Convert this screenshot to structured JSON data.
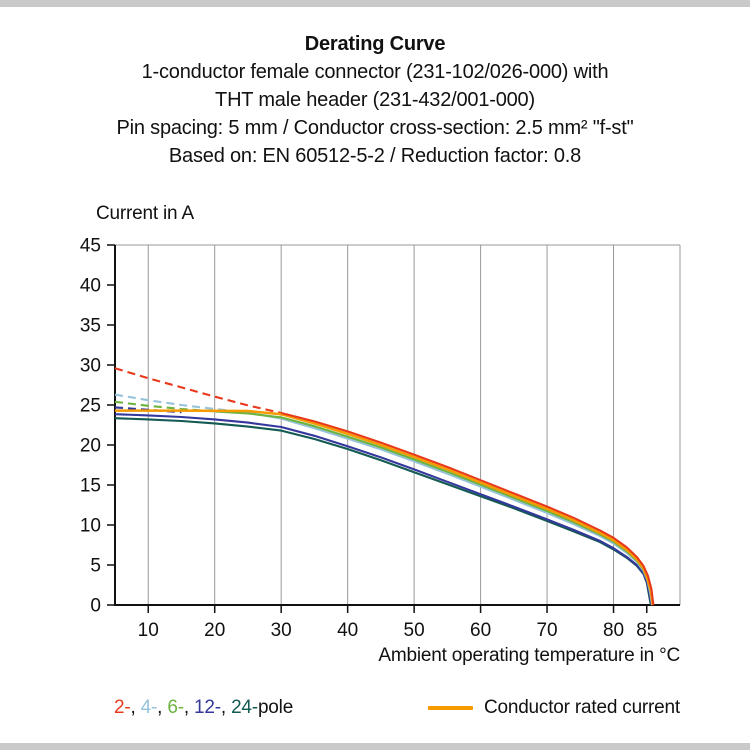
{
  "header": {
    "title": "Derating Curve",
    "subtitle_lines": [
      "1-conductor female connector (231-102/026-000) with",
      "THT male header (231-432/001-000)",
      "Pin spacing: 5 mm / Conductor cross-section: 2.5 mm² \"f-st\"",
      "Based on: EN 60512-5-2 / Reduction factor: 0.8"
    ]
  },
  "chart_data": {
    "type": "line",
    "title": "Derating Curve",
    "ylabel": "Current in A",
    "xlabel": "Ambient operating temperature in °C",
    "xlim": [
      5,
      90
    ],
    "ylim": [
      0,
      45
    ],
    "x_ticks": [
      10,
      20,
      30,
      40,
      50,
      60,
      70,
      80,
      85
    ],
    "x_gridlines": [
      10,
      20,
      30,
      40,
      50,
      60,
      70,
      80
    ],
    "y_ticks": [
      0,
      5,
      10,
      15,
      20,
      25,
      30,
      35,
      40,
      45
    ],
    "grid": "vertical-only",
    "legend_position": "bottom",
    "series": [
      {
        "name": "2-pole-extrapolated",
        "color": "#e8391b",
        "dash": true,
        "points": [
          [
            5,
            29.6
          ],
          [
            10,
            28.35
          ],
          [
            15,
            27.2
          ],
          [
            20,
            26.05
          ],
          [
            25,
            24.95
          ],
          [
            30,
            24.0
          ]
        ]
      },
      {
        "name": "4-pole-extrapolated",
        "color": "#96c3da",
        "dash": true,
        "points": [
          [
            5,
            26.3
          ],
          [
            10,
            25.6
          ],
          [
            15,
            25.0
          ],
          [
            20,
            24.5
          ],
          [
            25,
            24.05
          ]
        ]
      },
      {
        "name": "6-pole-extrapolated",
        "color": "#6db33f",
        "dash": true,
        "points": [
          [
            5,
            25.4
          ],
          [
            10,
            24.9
          ],
          [
            15,
            24.5
          ],
          [
            20,
            24.2
          ]
        ]
      },
      {
        "name": "12-pole-extrapolated",
        "color": "#34379b",
        "dash": true,
        "points": [
          [
            5,
            24.7
          ],
          [
            10,
            24.4
          ],
          [
            15,
            24.1
          ]
        ]
      },
      {
        "name": "24-pole",
        "color": "#135a52",
        "points": [
          [
            5,
            23.35
          ],
          [
            10,
            23.2
          ],
          [
            15,
            23.0
          ],
          [
            20,
            22.7
          ],
          [
            25,
            22.3
          ],
          [
            30,
            21.8
          ],
          [
            35,
            20.75
          ],
          [
            40,
            19.5
          ],
          [
            45,
            18.1
          ],
          [
            50,
            16.6
          ],
          [
            55,
            15.1
          ],
          [
            60,
            13.6
          ],
          [
            65,
            12.1
          ],
          [
            70,
            10.5
          ],
          [
            74,
            9.2
          ],
          [
            78,
            7.85
          ],
          [
            80,
            6.95
          ],
          [
            82,
            5.9
          ],
          [
            83.5,
            4.9
          ],
          [
            84.5,
            3.9
          ],
          [
            85,
            2.8
          ],
          [
            85.3,
            1.4
          ],
          [
            85.6,
            0
          ]
        ]
      },
      {
        "name": "12-pole",
        "color": "#34379b",
        "points": [
          [
            5,
            23.85
          ],
          [
            10,
            23.7
          ],
          [
            15,
            23.5
          ],
          [
            20,
            23.2
          ],
          [
            25,
            22.8
          ],
          [
            30,
            22.25
          ],
          [
            35,
            21.15
          ],
          [
            40,
            19.85
          ],
          [
            45,
            18.45
          ],
          [
            50,
            16.95
          ],
          [
            55,
            15.4
          ],
          [
            60,
            13.85
          ],
          [
            65,
            12.3
          ],
          [
            70,
            10.7
          ],
          [
            74,
            9.4
          ],
          [
            78,
            8.0
          ],
          [
            80,
            7.1
          ],
          [
            82,
            6.0
          ],
          [
            83.5,
            5.0
          ],
          [
            84.5,
            4.0
          ],
          [
            85,
            2.9
          ],
          [
            85.4,
            1.5
          ],
          [
            85.7,
            0
          ]
        ]
      },
      {
        "name": "4-pole",
        "color": "#96c3da",
        "points": [
          [
            25,
            24.05
          ],
          [
            30,
            23.3
          ],
          [
            35,
            22.1
          ],
          [
            40,
            20.8
          ],
          [
            45,
            19.45
          ],
          [
            50,
            17.95
          ],
          [
            55,
            16.4
          ],
          [
            60,
            14.8
          ],
          [
            65,
            13.15
          ],
          [
            70,
            11.5
          ],
          [
            74,
            10.1
          ],
          [
            78,
            8.6
          ],
          [
            80,
            7.7
          ],
          [
            82,
            6.5
          ],
          [
            83.5,
            5.4
          ],
          [
            84.5,
            4.3
          ],
          [
            85.1,
            3.1
          ],
          [
            85.5,
            1.6
          ],
          [
            85.8,
            0
          ]
        ]
      },
      {
        "name": "6-pole",
        "color": "#6db33f",
        "points": [
          [
            20,
            24.2
          ],
          [
            25,
            23.95
          ],
          [
            30,
            23.45
          ],
          [
            35,
            22.35
          ],
          [
            40,
            21.05
          ],
          [
            45,
            19.7
          ],
          [
            50,
            18.2
          ],
          [
            55,
            16.65
          ],
          [
            60,
            15.05
          ],
          [
            65,
            13.4
          ],
          [
            70,
            11.75
          ],
          [
            74,
            10.35
          ],
          [
            78,
            8.8
          ],
          [
            80,
            7.9
          ],
          [
            82,
            6.7
          ],
          [
            83.5,
            5.55
          ],
          [
            84.5,
            4.45
          ],
          [
            85.1,
            3.2
          ],
          [
            85.6,
            1.7
          ],
          [
            85.9,
            0
          ]
        ]
      },
      {
        "name": "conductor-rated-current",
        "color": "#f59b00",
        "width": 2.5,
        "points": [
          [
            5,
            24.3
          ],
          [
            15,
            24.3
          ],
          [
            25,
            24.25
          ],
          [
            30,
            23.85
          ],
          [
            35,
            22.7
          ],
          [
            40,
            21.4
          ],
          [
            45,
            20.0
          ],
          [
            50,
            18.5
          ],
          [
            55,
            16.95
          ],
          [
            60,
            15.3
          ],
          [
            65,
            13.65
          ],
          [
            70,
            12.0
          ],
          [
            74,
            10.6
          ],
          [
            78,
            9.0
          ],
          [
            80,
            8.1
          ],
          [
            82,
            6.9
          ],
          [
            83.5,
            5.7
          ],
          [
            84.5,
            4.6
          ],
          [
            85.1,
            3.3
          ],
          [
            85.6,
            1.8
          ],
          [
            85.9,
            0
          ]
        ]
      },
      {
        "name": "2-pole",
        "color": "#e8391b",
        "points": [
          [
            30,
            24.0
          ],
          [
            35,
            22.95
          ],
          [
            40,
            21.7
          ],
          [
            45,
            20.3
          ],
          [
            50,
            18.8
          ],
          [
            55,
            17.25
          ],
          [
            60,
            15.6
          ],
          [
            65,
            13.95
          ],
          [
            70,
            12.3
          ],
          [
            74,
            10.9
          ],
          [
            78,
            9.3
          ],
          [
            80,
            8.4
          ],
          [
            82,
            7.2
          ],
          [
            83.5,
            6.0
          ],
          [
            84.5,
            4.9
          ],
          [
            85.2,
            3.6
          ],
          [
            85.7,
            2.0
          ],
          [
            86,
            0
          ]
        ]
      }
    ]
  },
  "legend": {
    "pole_items": [
      {
        "label": "2-",
        "color": "#e8391b"
      },
      {
        "label": "4-",
        "color": "#96c3da"
      },
      {
        "label": "6-",
        "color": "#6db33f"
      },
      {
        "label": "12-",
        "color": "#34379b"
      },
      {
        "label": "24-",
        "color": "#135a52"
      }
    ],
    "pole_suffix": "pole",
    "conductor": {
      "color": "#f59b00",
      "label": "Conductor rated current"
    }
  }
}
